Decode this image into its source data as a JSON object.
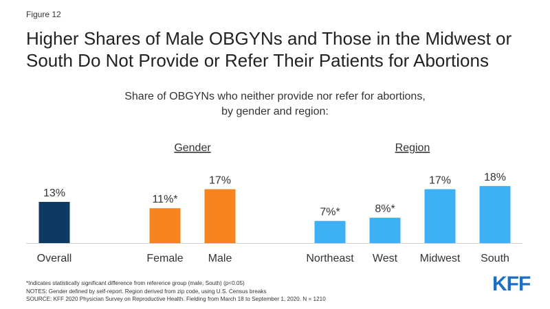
{
  "figure_label": "Figure 12",
  "title": "Higher Shares of Male OBGYNs and Those in the Midwest or South Do Not Provide or Refer Their Patients for Abortions",
  "subtitle_line1": "Share of OBGYNs who neither provide nor refer for abortions,",
  "subtitle_line2": "by gender and region:",
  "chart_data": {
    "type": "bar",
    "groups": [
      {
        "label": "",
        "categories": [
          "Overall"
        ]
      },
      {
        "label": "Gender",
        "categories": [
          "Female",
          "Male"
        ]
      },
      {
        "label": "Region",
        "categories": [
          "Northeast",
          "West",
          "Midwest",
          "South"
        ]
      }
    ],
    "categories": [
      "Overall",
      "Female",
      "Male",
      "Northeast",
      "West",
      "Midwest",
      "South"
    ],
    "values": [
      13,
      11,
      17,
      7,
      8,
      17,
      18
    ],
    "value_labels": [
      "13%",
      "11%*",
      "17%",
      "7%*",
      "8%*",
      "17%",
      "18%"
    ],
    "colors": [
      "#0d3a63",
      "#f5841f",
      "#f5841f",
      "#3eb0f5",
      "#3eb0f5",
      "#3eb0f5",
      "#3eb0f5"
    ],
    "ylim": [
      0,
      20
    ]
  },
  "notes": [
    "*Indicates statistically significant difference from reference group (male, South) (p<0.05)",
    "NOTES: Gender defined by self-report. Region derived from zip code, using U.S. Census breaks",
    "SOURCE: KFF 2020 Physician Survey on Reproductive Health. Fielding from March 18 to September 1, 2020. N = 1210"
  ],
  "logo_text": "KFF"
}
